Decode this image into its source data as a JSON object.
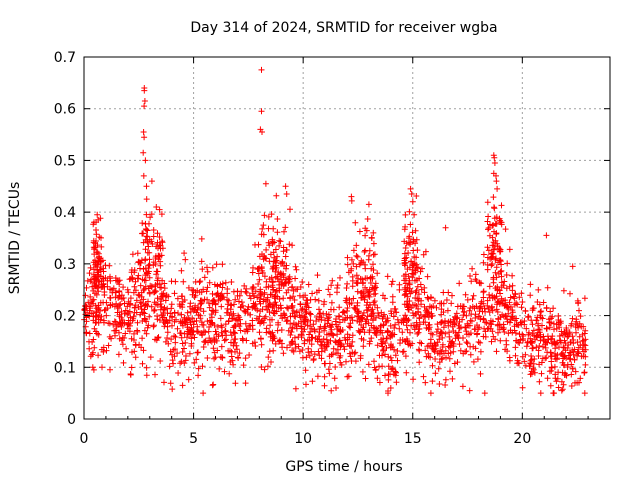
{
  "chart_data": {
    "type": "scatter",
    "title": "Day 314 of 2024, SRMTID for receiver wgba",
    "xlabel": "GPS time / hours",
    "ylabel": "SRMTID / TECUs",
    "xlim": [
      0,
      24
    ],
    "ylim": [
      0,
      0.7
    ],
    "xticks": [
      0,
      5,
      10,
      15,
      20
    ],
    "xtick_labels": [
      "0",
      "5",
      "10",
      "15",
      "20"
    ],
    "yticks": [
      0,
      0.1,
      0.2,
      0.3,
      0.4,
      0.5,
      0.6,
      0.7
    ],
    "ytick_labels": [
      "0",
      "0.1",
      "0.2",
      "0.3",
      "0.4",
      "0.5",
      "0.6",
      "0.7"
    ],
    "grid": true,
    "marker": "plus",
    "marker_color": "#ff0000",
    "x_range_of_data": [
      0,
      22.9
    ],
    "baseline_profile": [
      {
        "x": 0.0,
        "y": 0.22,
        "spread": 0.05
      },
      {
        "x": 1.0,
        "y": 0.22,
        "spread": 0.06
      },
      {
        "x": 2.0,
        "y": 0.2,
        "spread": 0.06
      },
      {
        "x": 3.0,
        "y": 0.25,
        "spread": 0.08
      },
      {
        "x": 4.0,
        "y": 0.18,
        "spread": 0.05
      },
      {
        "x": 5.0,
        "y": 0.2,
        "spread": 0.06
      },
      {
        "x": 6.0,
        "y": 0.19,
        "spread": 0.06
      },
      {
        "x": 7.0,
        "y": 0.17,
        "spread": 0.05
      },
      {
        "x": 8.0,
        "y": 0.22,
        "spread": 0.07
      },
      {
        "x": 9.0,
        "y": 0.25,
        "spread": 0.07
      },
      {
        "x": 10.0,
        "y": 0.18,
        "spread": 0.05
      },
      {
        "x": 11.0,
        "y": 0.16,
        "spread": 0.05
      },
      {
        "x": 12.0,
        "y": 0.17,
        "spread": 0.05
      },
      {
        "x": 13.0,
        "y": 0.2,
        "spread": 0.06
      },
      {
        "x": 14.0,
        "y": 0.15,
        "spread": 0.05
      },
      {
        "x": 15.0,
        "y": 0.22,
        "spread": 0.07
      },
      {
        "x": 16.0,
        "y": 0.16,
        "spread": 0.05
      },
      {
        "x": 17.0,
        "y": 0.17,
        "spread": 0.05
      },
      {
        "x": 18.0,
        "y": 0.2,
        "spread": 0.06
      },
      {
        "x": 19.0,
        "y": 0.24,
        "spread": 0.07
      },
      {
        "x": 20.0,
        "y": 0.15,
        "spread": 0.05
      },
      {
        "x": 21.0,
        "y": 0.15,
        "spread": 0.05
      },
      {
        "x": 22.0,
        "y": 0.13,
        "spread": 0.05
      },
      {
        "x": 22.9,
        "y": 0.15,
        "spread": 0.05
      }
    ],
    "notable_points": [
      {
        "x": 2.75,
        "y": 0.64
      },
      {
        "x": 2.75,
        "y": 0.635
      },
      {
        "x": 2.78,
        "y": 0.615
      },
      {
        "x": 2.74,
        "y": 0.605
      },
      {
        "x": 2.72,
        "y": 0.555
      },
      {
        "x": 2.74,
        "y": 0.545
      },
      {
        "x": 2.7,
        "y": 0.515
      },
      {
        "x": 2.8,
        "y": 0.5
      },
      {
        "x": 2.73,
        "y": 0.47
      },
      {
        "x": 2.85,
        "y": 0.45
      },
      {
        "x": 3.1,
        "y": 0.46
      },
      {
        "x": 3.3,
        "y": 0.41
      },
      {
        "x": 3.45,
        "y": 0.405
      },
      {
        "x": 8.1,
        "y": 0.675
      },
      {
        "x": 8.1,
        "y": 0.595
      },
      {
        "x": 8.05,
        "y": 0.56
      },
      {
        "x": 8.12,
        "y": 0.555
      },
      {
        "x": 8.3,
        "y": 0.455
      },
      {
        "x": 9.2,
        "y": 0.45
      },
      {
        "x": 9.25,
        "y": 0.435
      },
      {
        "x": 12.2,
        "y": 0.43
      },
      {
        "x": 13.0,
        "y": 0.415
      },
      {
        "x": 14.9,
        "y": 0.445
      },
      {
        "x": 14.95,
        "y": 0.435
      },
      {
        "x": 15.0,
        "y": 0.42
      },
      {
        "x": 18.7,
        "y": 0.51
      },
      {
        "x": 18.72,
        "y": 0.505
      },
      {
        "x": 18.75,
        "y": 0.495
      },
      {
        "x": 18.7,
        "y": 0.475
      },
      {
        "x": 18.8,
        "y": 0.47
      },
      {
        "x": 18.85,
        "y": 0.445
      },
      {
        "x": 0.6,
        "y": 0.395
      },
      {
        "x": 0.65,
        "y": 0.385
      },
      {
        "x": 16.5,
        "y": 0.37
      },
      {
        "x": 21.1,
        "y": 0.355
      },
      {
        "x": 22.3,
        "y": 0.295
      },
      {
        "x": 4.5,
        "y": 0.065
      },
      {
        "x": 11.5,
        "y": 0.06
      },
      {
        "x": 14.0,
        "y": 0.06
      },
      {
        "x": 17.6,
        "y": 0.055
      },
      {
        "x": 21.8,
        "y": 0.055
      },
      {
        "x": 22.5,
        "y": 0.07
      },
      {
        "x": 0.4,
        "y": 0.1
      },
      {
        "x": 0.45,
        "y": 0.095
      }
    ]
  }
}
